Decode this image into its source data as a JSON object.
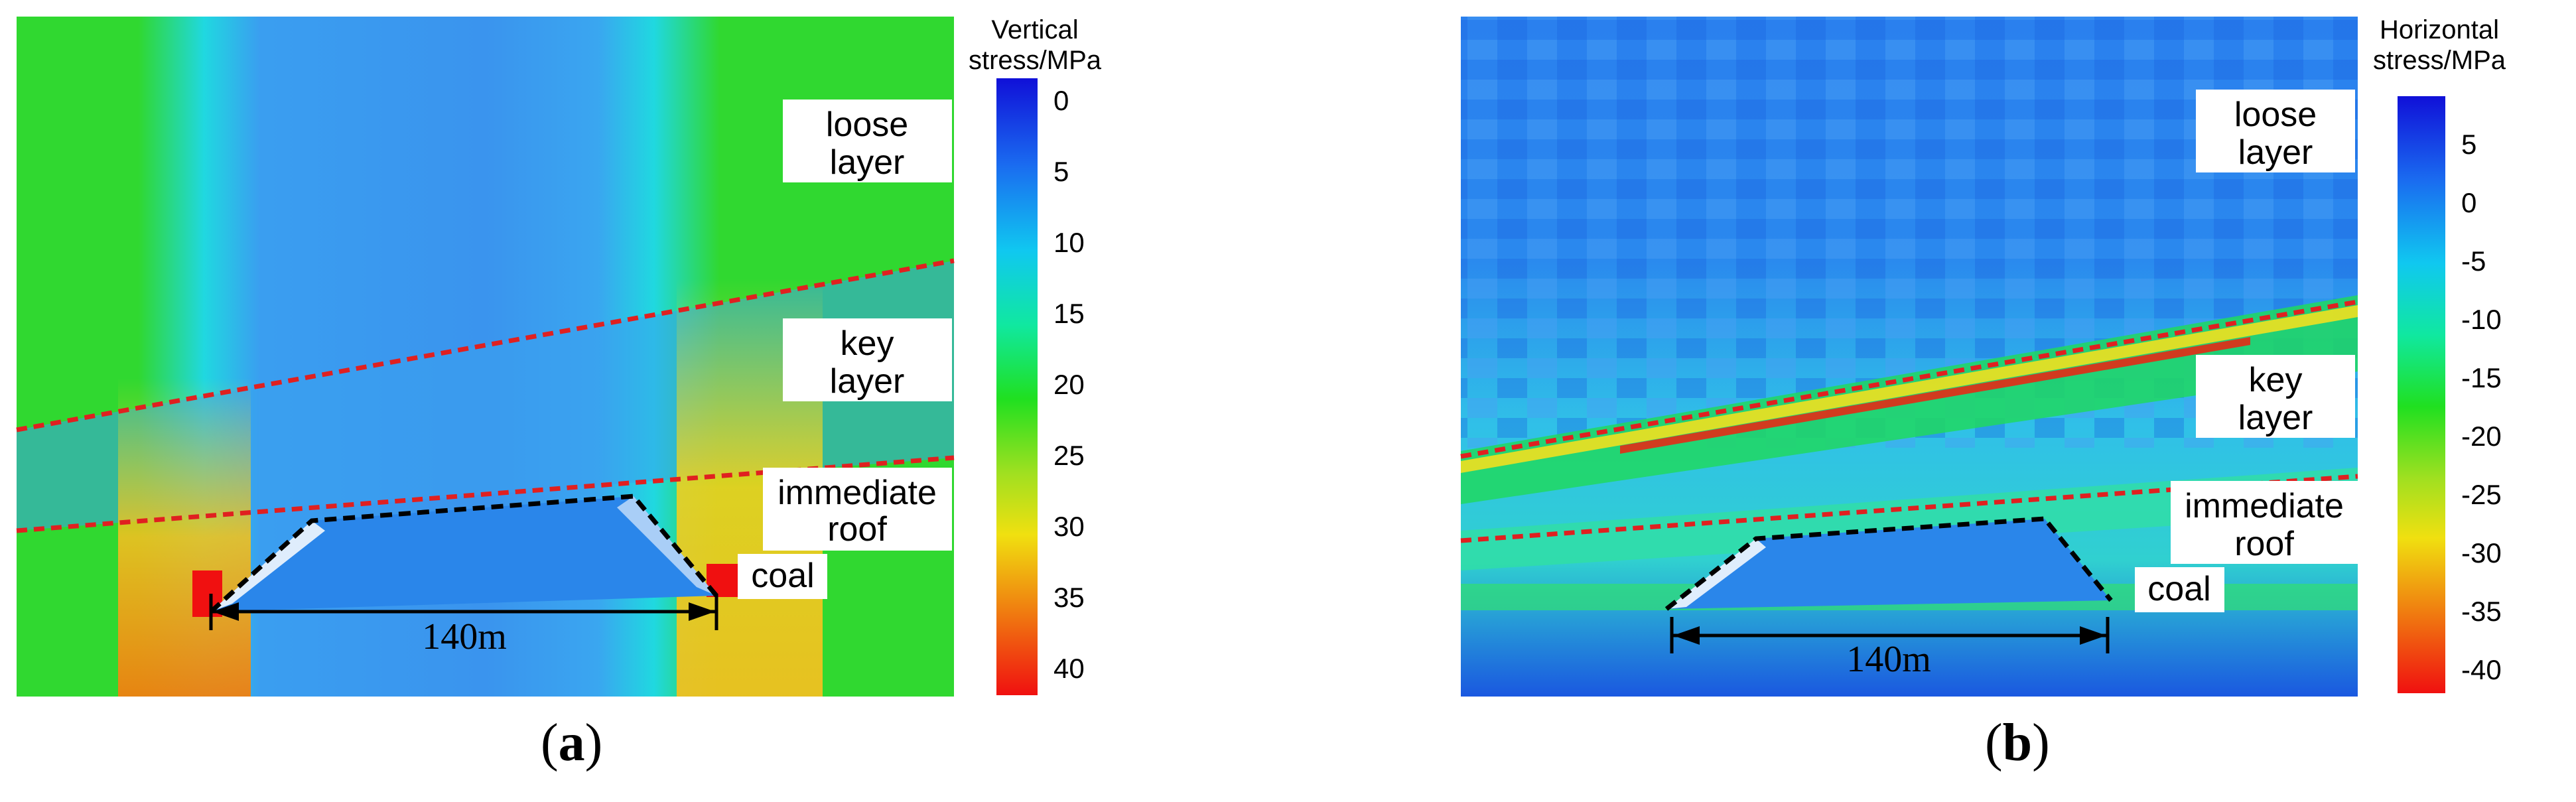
{
  "panels": [
    {
      "id": "a",
      "caption_open": "(",
      "caption_letter": "a",
      "caption_close": ")",
      "colorbar_title_line1": "Vertical",
      "colorbar_title_line2": "stress/MPa",
      "colorbar_ticks": [
        "0",
        "5",
        "10",
        "15",
        "20",
        "25",
        "30",
        "35",
        "40"
      ],
      "colorbar_gradient": [
        "#1010d8",
        "#1a6bf0",
        "#10c8f0",
        "#10e8a0",
        "#20e020",
        "#a0e020",
        "#f0e010",
        "#f08010",
        "#f01010"
      ],
      "labels": {
        "loose_line1": "loose",
        "loose_line2": "layer",
        "key_line1": "key",
        "key_line2": "layer",
        "roof_line1": "immediate",
        "roof_line2": "roof",
        "coal": "coal",
        "span": "140m"
      }
    },
    {
      "id": "b",
      "caption_open": "(",
      "caption_letter": "b",
      "caption_close": ")",
      "colorbar_title_line1": "Horizontal",
      "colorbar_title_line2": "stress/MPa",
      "colorbar_ticks": [
        "5",
        "0",
        "-5",
        "-10",
        "-15",
        "-20",
        "-25",
        "-30",
        "-35",
        "-40"
      ],
      "colorbar_gradient": [
        "#1010d8",
        "#1a6bf0",
        "#10c8f0",
        "#10e8a0",
        "#20e020",
        "#a0e020",
        "#f0e010",
        "#f08010",
        "#f01010"
      ],
      "labels": {
        "loose_line1": "loose",
        "loose_line2": "layer",
        "key_line1": "key",
        "key_line2": "layer",
        "roof_line1": "immediate",
        "roof_line2": "roof",
        "coal": "coal",
        "span": "140m"
      }
    }
  ],
  "colors": {
    "red_dash": "#e02020",
    "goaf_outline": "#000000",
    "field_green": "#30d830",
    "field_blue": "#2a8ef0",
    "field_cyan": "#20d8f0",
    "field_yellow": "#f0e020",
    "field_red": "#f02010",
    "field_dark_blue": "#1848e0"
  }
}
